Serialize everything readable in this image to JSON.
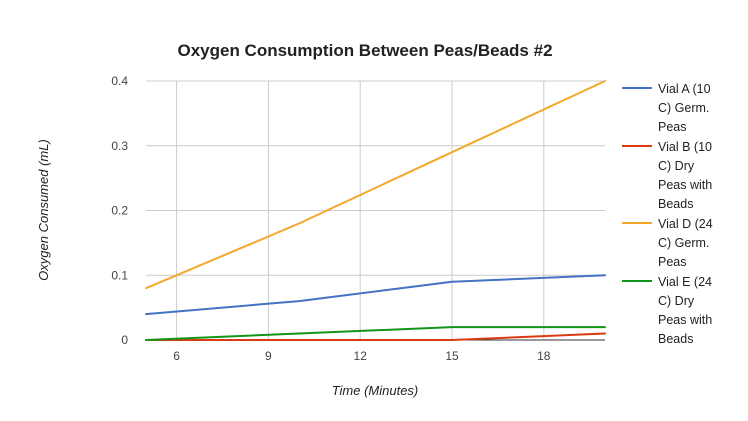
{
  "chart_data": {
    "type": "line",
    "title": "Oxygen Consumption Between Peas/Beads #2",
    "xlabel": "Time (Minutes)",
    "ylabel": "Oxygen Consumed (mL)",
    "xlim": [
      5,
      20
    ],
    "ylim": [
      0,
      0.4
    ],
    "x_ticks": [
      6,
      9,
      12,
      15,
      18
    ],
    "x_tick_labels": [
      "6",
      "9",
      "12",
      "15",
      "18"
    ],
    "y_ticks": [
      0,
      0.1,
      0.2,
      0.3,
      0.4
    ],
    "y_tick_labels": [
      "0",
      "0.1",
      "0.2",
      "0.3",
      "0.4"
    ],
    "grid": true,
    "legend_position": "right",
    "x": [
      5,
      10,
      15,
      20
    ],
    "series": [
      {
        "name": "Vial A (10 C) Germ. Peas",
        "legend_lines": [
          "Vial A (10",
          "C) Germ.",
          "Peas"
        ],
        "color": "#4472c4",
        "values": [
          0.04,
          0.06,
          0.09,
          0.1
        ]
      },
      {
        "name": "Vial B (10 C) Dry Peas with Beads",
        "legend_lines": [
          "Vial B (10",
          "C) Dry",
          "Peas with",
          "Beads"
        ],
        "color": "#dc3912",
        "values": [
          0,
          0,
          0,
          0.01
        ]
      },
      {
        "name": "Vial D (24 C) Germ. Peas",
        "legend_lines": [
          "Vial D (24",
          "C) Germ.",
          "Peas"
        ],
        "color": "#f4a82a",
        "values": [
          0.08,
          0.18,
          0.29,
          0.4
        ]
      },
      {
        "name": "Vial E (24 C) Dry Peas with Beads",
        "legend_lines": [
          "Vial E (24",
          "C) Dry",
          "Peas with",
          "Beads"
        ],
        "color": "#109618",
        "values": [
          0,
          0.01,
          0.02,
          0.02
        ]
      }
    ]
  }
}
